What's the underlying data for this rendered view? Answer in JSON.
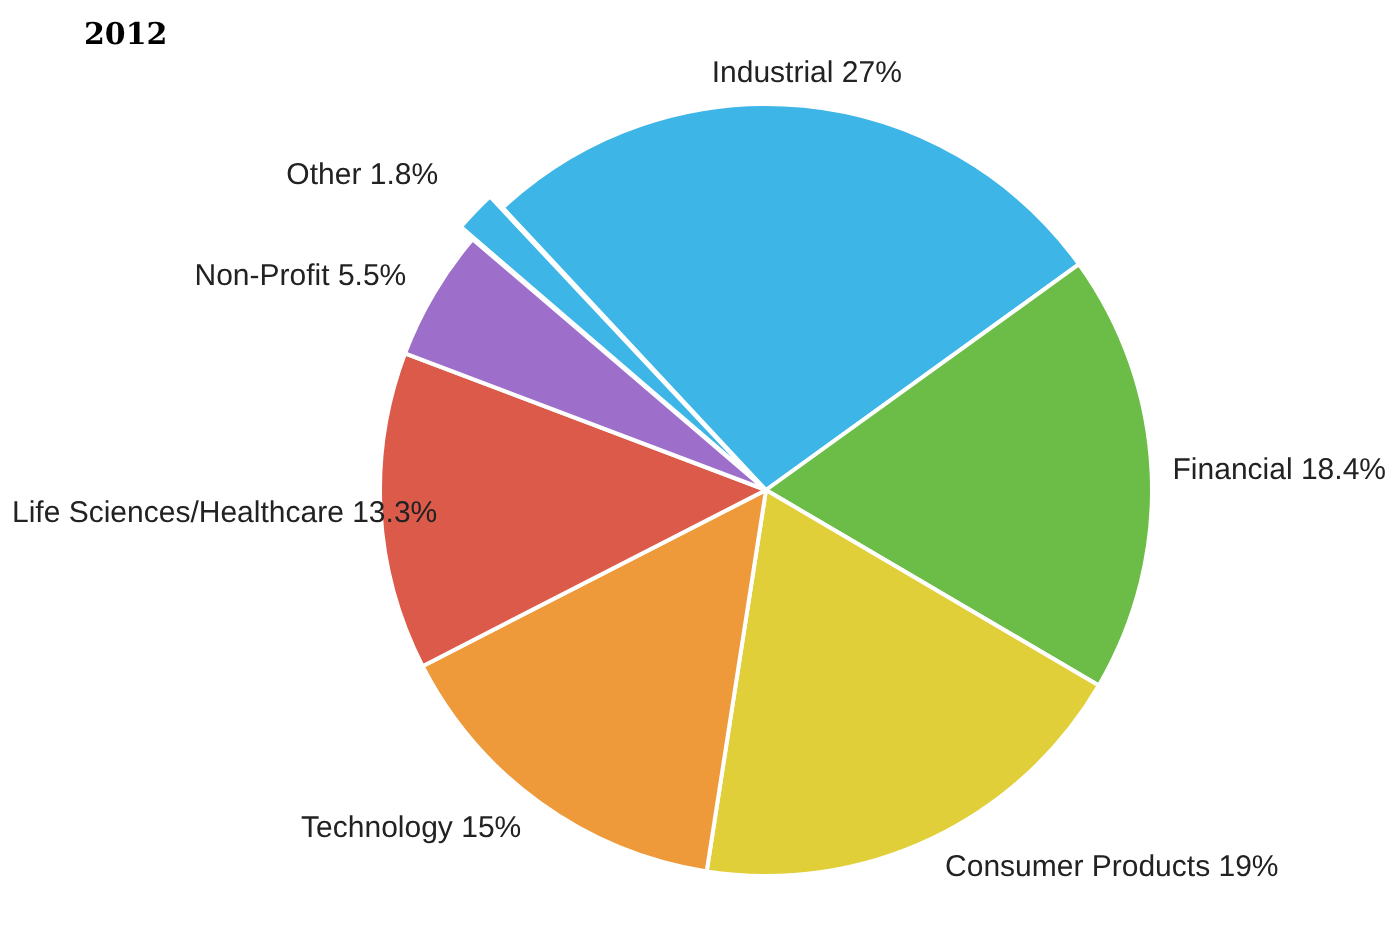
{
  "chart_data": {
    "type": "pie",
    "title": "2012",
    "categories": [
      "Industrial",
      "Financial",
      "Consumer Products",
      "Technology",
      "Life Sciences/Healthcare",
      "Non-Profit",
      "Other"
    ],
    "values": [
      27,
      18.4,
      19,
      15,
      13.3,
      5.5,
      1.8
    ],
    "value_labels": [
      "27%",
      "18.4%",
      "19%",
      "15%",
      "13.3%",
      "5.5%",
      "1.8%"
    ],
    "colors": [
      "#3db5e6",
      "#6cbd47",
      "#e0cf38",
      "#ee9a3b",
      "#dc5a4a",
      "#9d6fcb",
      "#3db5e6"
    ],
    "legend": false
  }
}
